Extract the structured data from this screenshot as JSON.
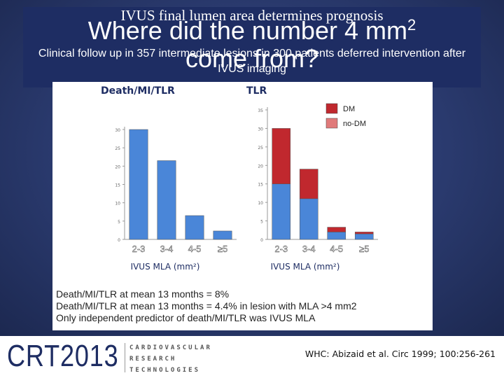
{
  "slide": {
    "old_title": "IVUS final lumen area determines prognosis",
    "title": "Where did the number 4 mm",
    "title_superscript": "2",
    "title_line2": "come from?",
    "subtitle": "Clinical follow up in 357 intermediate lesions in 300 patients deferred intervention after IVUS imaging"
  },
  "bottom_notes": [
    "Death/MI/TLR at mean 13 months = 8%",
    "Death/MI/TLR at mean 13 months = 4.4%  in lesion with MLA >4 mm2",
    "Only independent predictor of death/MI/TLR was IVUS MLA"
  ],
  "footer": {
    "logo_main": "CRT2013",
    "logo_sub_lines": [
      "CARDIOVASCULAR",
      "RESEARCH",
      "TECHNOLOGIES"
    ],
    "citation": "WHC: Abizaid et al. Circ 1999; 100:256-261"
  },
  "colors": {
    "bar_blue": "#4a86d8",
    "bar_red": "#c0282e",
    "legend_no_dm": "#e07a7a",
    "axis": "#999999",
    "title_band": "#1e2d63"
  },
  "chart_data": [
    {
      "type": "bar",
      "title": "Death/MI/TLR",
      "categories": [
        "2-3",
        "3-4",
        "4-5",
        "≥5"
      ],
      "values": [
        30,
        21.5,
        6.5,
        2.3
      ],
      "y_ticks": [
        0,
        5,
        10,
        15,
        20,
        25,
        30
      ],
      "ylim": [
        0,
        30
      ],
      "xlabel": "IVUS MLA (mm²)"
    },
    {
      "type": "bar",
      "stacked": true,
      "title": "TLR",
      "categories": [
        "2-3",
        "3-4",
        "4-5",
        "≥5"
      ],
      "series": [
        {
          "name": "no-DM",
          "color": "#4a86d8",
          "values": [
            15,
            11,
            2,
            1.5
          ]
        },
        {
          "name": "DM",
          "color": "#c0282e",
          "values": [
            15,
            8,
            1.3,
            0.5
          ]
        }
      ],
      "legend": [
        {
          "name": "DM",
          "color": "#c0282e"
        },
        {
          "name": "no-DM",
          "color": "#e07a7a"
        }
      ],
      "legend_position": "top-right",
      "y_ticks": [
        0,
        5,
        10,
        15,
        20,
        25,
        30,
        35
      ],
      "ylim": [
        0,
        35
      ],
      "xlabel": "IVUS MLA (mm²)"
    }
  ]
}
